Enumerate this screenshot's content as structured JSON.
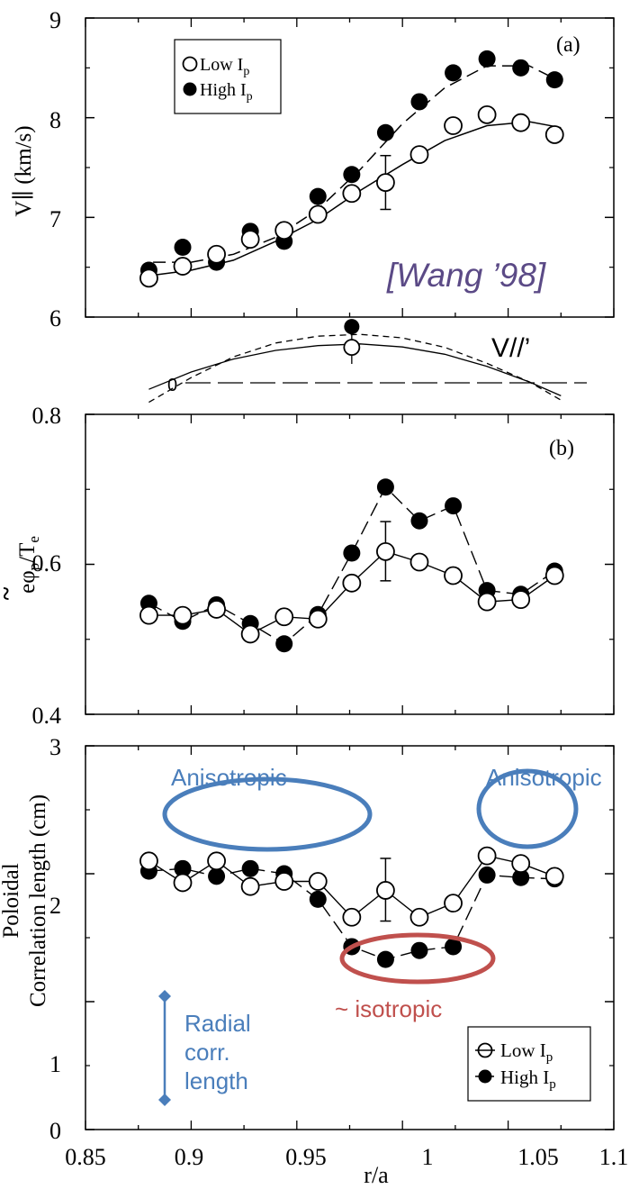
{
  "colors": {
    "ink": "#000000",
    "annotation_blue": "#4a7ebb",
    "annotation_red": "#c0504d",
    "citation_purple": "#5b4a86"
  },
  "chart_data": [
    {
      "id": "a",
      "type": "scatter",
      "panel_label": "(a)",
      "ylabel": "V∥ (km/s)",
      "xlim": [
        0.85,
        1.1
      ],
      "ylim": [
        6,
        9
      ],
      "yticks": [
        6,
        7,
        8,
        9
      ],
      "legend": {
        "placement": "top-left",
        "entries": [
          "Low Ip",
          "High Ip"
        ]
      },
      "series": [
        {
          "name": "Low Ip",
          "marker": "open-circle",
          "x": [
            0.88,
            0.896,
            0.912,
            0.928,
            0.944,
            0.96,
            0.976,
            0.992,
            1.008,
            1.024,
            1.04,
            1.056,
            1.072
          ],
          "y": [
            6.39,
            6.51,
            6.63,
            6.78,
            6.87,
            7.03,
            7.24,
            7.35,
            7.63,
            7.92,
            8.03,
            7.95,
            7.83
          ],
          "errorbar": {
            "x": 0.992,
            "y": [
              7.08,
              7.62
            ]
          }
        },
        {
          "name": "High Ip",
          "marker": "filled-circle",
          "x": [
            0.88,
            0.896,
            0.912,
            0.928,
            0.944,
            0.96,
            0.976,
            0.992,
            1.008,
            1.024,
            1.04,
            1.056,
            1.072
          ],
          "y": [
            6.47,
            6.7,
            6.55,
            6.86,
            6.76,
            7.21,
            7.43,
            7.85,
            8.16,
            8.45,
            8.59,
            8.5,
            8.38
          ]
        }
      ],
      "fits": [
        {
          "series": "Low Ip",
          "style": "solid",
          "x": [
            0.882,
            0.9,
            0.92,
            0.94,
            0.96,
            0.98,
            1.0,
            1.02,
            1.04,
            1.06,
            1.075
          ],
          "y": [
            6.42,
            6.47,
            6.57,
            6.76,
            6.98,
            7.27,
            7.53,
            7.77,
            7.92,
            7.96,
            7.9
          ]
        },
        {
          "series": "High Ip",
          "style": "dashed",
          "x": [
            0.882,
            0.9,
            0.92,
            0.94,
            0.96,
            0.98,
            1.0,
            1.02,
            1.04,
            1.06,
            1.075
          ],
          "y": [
            6.55,
            6.55,
            6.63,
            6.8,
            7.08,
            7.48,
            7.94,
            8.3,
            8.52,
            8.52,
            8.36
          ]
        }
      ],
      "annotations": [
        {
          "text": "[Wang ’98]",
          "color": "citation_purple"
        }
      ]
    },
    {
      "id": "derivative",
      "type": "line",
      "label": "V//’",
      "zero_label": "0",
      "series": [
        {
          "style": "solid",
          "x": [
            0.88,
            0.9,
            0.92,
            0.94,
            0.96,
            0.98,
            1.0,
            1.02,
            1.04,
            1.06,
            1.075
          ],
          "y": [
            -0.15,
            0.25,
            0.55,
            0.75,
            0.86,
            0.9,
            0.83,
            0.66,
            0.38,
            0.02,
            -0.3
          ]
        },
        {
          "style": "dashed",
          "x": [
            0.88,
            0.9,
            0.92,
            0.94,
            0.96,
            0.98,
            1.0,
            1.02,
            1.04,
            1.06,
            1.075
          ],
          "y": [
            -0.45,
            0.12,
            0.6,
            0.92,
            1.08,
            1.12,
            1.04,
            0.82,
            0.45,
            0.02,
            -0.4
          ]
        }
      ],
      "markers": [
        {
          "marker": "filled-circle",
          "x": 0.976,
          "y": 1.3
        },
        {
          "marker": "open-circle",
          "x": 0.976,
          "y": 0.82
        }
      ]
    },
    {
      "id": "b",
      "type": "line",
      "panel_label": "(b)",
      "ylabel": "eφp/Te",
      "xlim": [
        0.85,
        1.1
      ],
      "ylim": [
        0.4,
        0.8
      ],
      "yticks": [
        0.4,
        0.6,
        0.8
      ],
      "series": [
        {
          "name": "Low Ip",
          "marker": "open-circle",
          "style": "solid",
          "x": [
            0.88,
            0.896,
            0.912,
            0.928,
            0.944,
            0.96,
            0.976,
            0.992,
            1.008,
            1.024,
            1.04,
            1.056,
            1.072
          ],
          "y": [
            0.532,
            0.532,
            0.54,
            0.507,
            0.53,
            0.527,
            0.575,
            0.617,
            0.603,
            0.585,
            0.55,
            0.553,
            0.585
          ],
          "errorbar": {
            "x": 0.992,
            "y": [
              0.578,
              0.657
            ]
          }
        },
        {
          "name": "High Ip",
          "marker": "filled-circle",
          "style": "dashed",
          "x": [
            0.88,
            0.896,
            0.912,
            0.928,
            0.944,
            0.96,
            0.976,
            0.992,
            1.008,
            1.024,
            1.04,
            1.056,
            1.072
          ],
          "y": [
            0.548,
            0.524,
            0.546,
            0.521,
            0.494,
            0.533,
            0.615,
            0.703,
            0.658,
            0.678,
            0.565,
            0.56,
            0.591
          ]
        }
      ]
    },
    {
      "id": "c",
      "type": "line",
      "ylabel_line1": "Poloidal",
      "ylabel_line2": "Correlation length (cm)",
      "xlabel": "r/a",
      "xlim": [
        0.85,
        1.1
      ],
      "ylim": [
        0,
        3
      ],
      "xticks": [
        0.85,
        0.9,
        0.95,
        1,
        1.05,
        1.1
      ],
      "xtick_labels": [
        "0.85",
        "0.9",
        "0.95",
        "1",
        "1.05",
        "1.1"
      ],
      "yticks": [
        0,
        1,
        2,
        3
      ],
      "legend": {
        "placement": "bottom-right",
        "entries": [
          "Low Ip",
          "High Ip"
        ]
      },
      "series": [
        {
          "name": "Low Ip",
          "marker": "open-circle",
          "style": "solid",
          "x": [
            0.88,
            0.896,
            0.912,
            0.928,
            0.944,
            0.96,
            0.976,
            0.992,
            1.008,
            1.024,
            1.04,
            1.056,
            1.072
          ],
          "y": [
            2.1,
            1.93,
            2.1,
            1.9,
            1.94,
            1.94,
            1.66,
            1.87,
            1.66,
            1.77,
            2.14,
            2.08,
            1.98
          ],
          "errorbar": {
            "x": 0.992,
            "y": [
              1.63,
              2.12
            ]
          }
        },
        {
          "name": "High Ip",
          "marker": "filled-circle",
          "style": "dashed",
          "x": [
            0.88,
            0.896,
            0.912,
            0.928,
            0.944,
            0.96,
            0.976,
            0.992,
            1.008,
            1.024,
            1.04,
            1.056,
            1.072
          ],
          "y": [
            2.02,
            2.04,
            1.98,
            2.04,
            2.0,
            1.8,
            1.43,
            1.33,
            1.4,
            1.43,
            1.99,
            1.97,
            1.96
          ]
        }
      ],
      "annotations": [
        {
          "text": "Anisotropic",
          "color": "annotation_blue",
          "target": "left"
        },
        {
          "text": "Anisotropic",
          "color": "annotation_blue",
          "target": "right"
        },
        {
          "text": "~ isotropic",
          "color": "annotation_red",
          "target": "center"
        },
        {
          "text_lines": [
            "Radial",
            "corr.",
            "length"
          ],
          "color": "annotation_blue",
          "range": [
            0.5,
            1.34
          ]
        }
      ]
    }
  ]
}
